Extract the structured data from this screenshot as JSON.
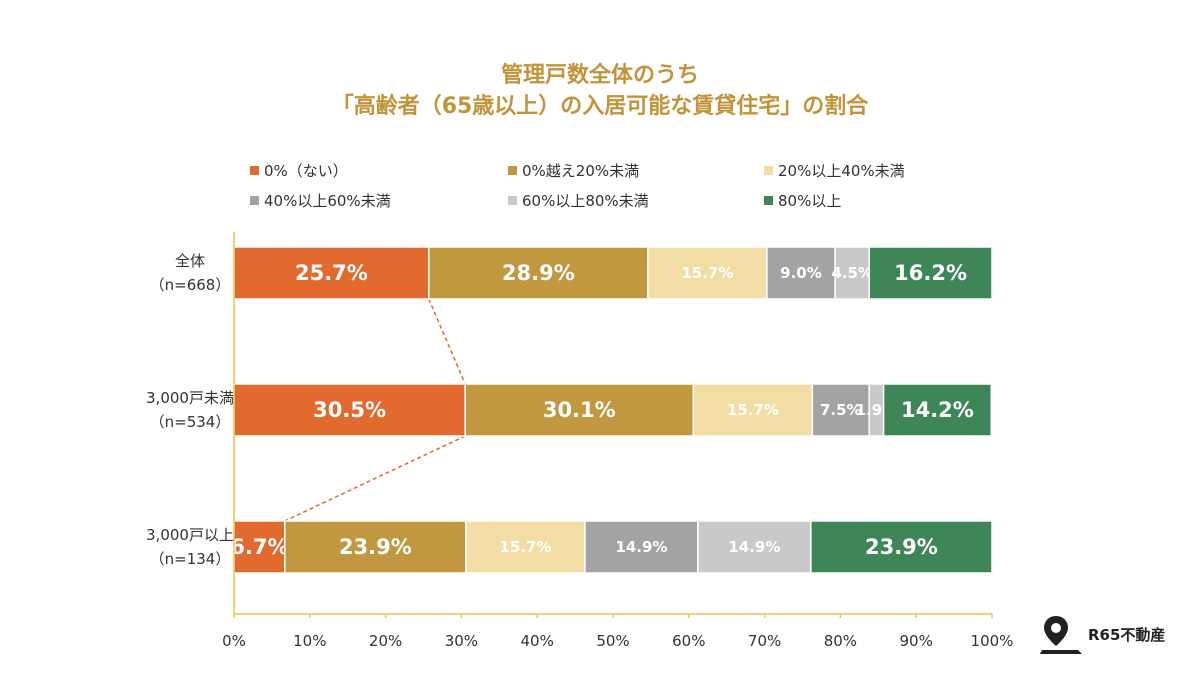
{
  "title": {
    "line1": "管理戸数全体のうち",
    "line2": "「高齢者（65歳以上）の入居可能な賃貸住宅」の割合"
  },
  "legend": [
    {
      "label": "0%（ない）",
      "color": "#E36A2E"
    },
    {
      "label": "0%越え20%未満",
      "color": "#C1983F"
    },
    {
      "label": "20%以上40%未満",
      "color": "#F2DEA4"
    },
    {
      "label": "40%以上60%未満",
      "color": "#A3A3A3"
    },
    {
      "label": "60%以上80%未満",
      "color": "#C9C9C9"
    },
    {
      "label": "80%以上",
      "color": "#3E8558"
    }
  ],
  "chart_data": {
    "type": "bar",
    "orientation": "horizontal",
    "stacked": true,
    "categories": [
      {
        "line1": "全体",
        "line2": "（n=668）"
      },
      {
        "line1": "3,000戸未満",
        "line2": "（n=534）"
      },
      {
        "line1": "3,000戸以上",
        "line2": "（n=134）"
      }
    ],
    "series": [
      {
        "name": "0%（ない）",
        "values": [
          25.7,
          30.5,
          6.7
        ],
        "labels": [
          "25.7%",
          "30.5%",
          "6.7%"
        ],
        "color": "#E36A2E"
      },
      {
        "name": "0%越え20%未満",
        "values": [
          28.9,
          30.1,
          23.9
        ],
        "labels": [
          "28.9%",
          "30.1%",
          "23.9%"
        ],
        "color": "#C1983F"
      },
      {
        "name": "20%以上40%未満",
        "values": [
          15.7,
          15.7,
          15.7
        ],
        "labels": [
          "15.7%",
          "15.7%",
          "15.7%"
        ],
        "color": "#F2DEA4"
      },
      {
        "name": "40%以上60%未満",
        "values": [
          9.0,
          7.5,
          14.9
        ],
        "labels": [
          "9.0%",
          "7.5%",
          "14.9%"
        ],
        "color": "#A3A3A3"
      },
      {
        "name": "60%以上80%未満",
        "values": [
          4.5,
          1.9,
          14.9
        ],
        "labels": [
          "4.5%",
          "1.9%",
          "14.9%"
        ],
        "color": "#C9C9C9"
      },
      {
        "name": "80%以上",
        "values": [
          16.2,
          14.2,
          23.9
        ],
        "labels": [
          "16.2%",
          "14.2%",
          "23.9%"
        ],
        "color": "#3E8558"
      }
    ],
    "xticks": [
      "0%",
      "10%",
      "20%",
      "30%",
      "40%",
      "50%",
      "60%",
      "70%",
      "80%",
      "90%",
      "100%"
    ],
    "xlim": [
      0,
      100
    ],
    "axis_color": "#F2C14E",
    "connector_color": "#E36A2E",
    "grid": false,
    "legend_position": "top"
  },
  "brand": {
    "label": "R65不動産",
    "icon": "map-pin-icon"
  }
}
